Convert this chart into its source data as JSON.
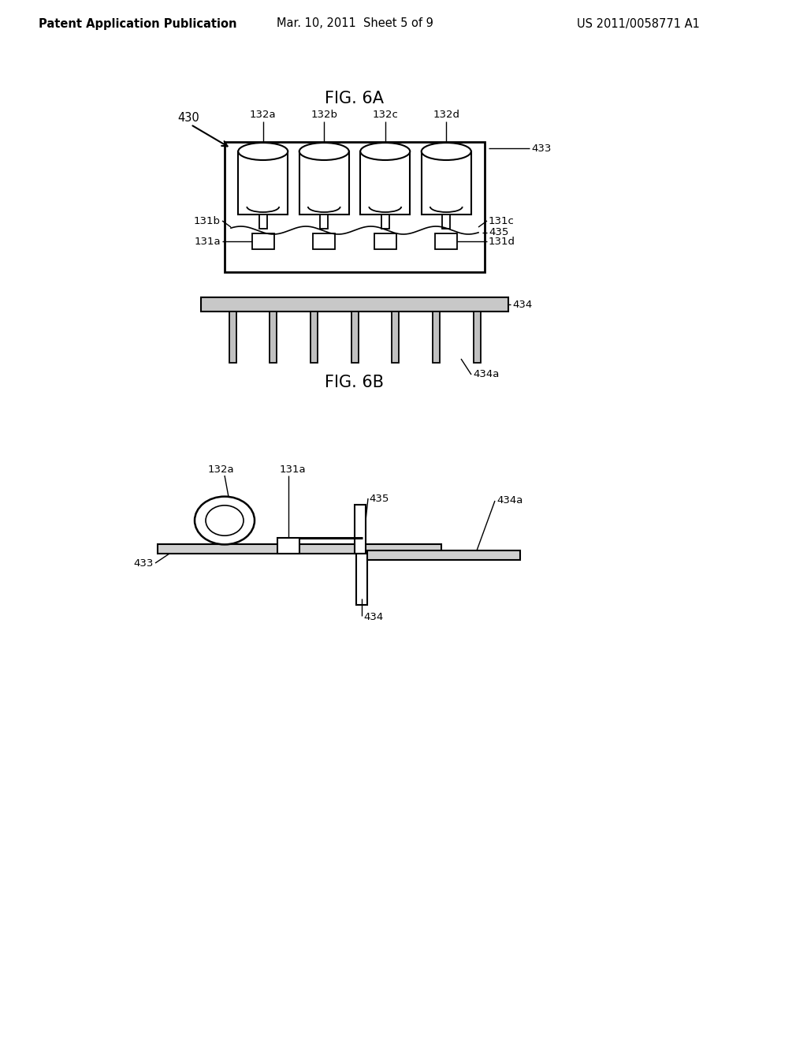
{
  "bg_color": "#ffffff",
  "line_color": "#000000",
  "header_left": "Patent Application Publication",
  "header_mid": "Mar. 10, 2011  Sheet 5 of 9",
  "header_right": "US 2011/0058771 A1",
  "fig6a_title": "FIG. 6A",
  "fig6b_title": "FIG. 6B",
  "label_430": "430",
  "label_132a": "132a",
  "label_132b": "132b",
  "label_132c": "132c",
  "label_132d": "132d",
  "label_433": "433",
  "label_131b": "131b",
  "label_131c": "131c",
  "label_131a": "131a",
  "label_131d": "131d",
  "label_435": "435",
  "label_434": "434",
  "label_434a": "434a"
}
